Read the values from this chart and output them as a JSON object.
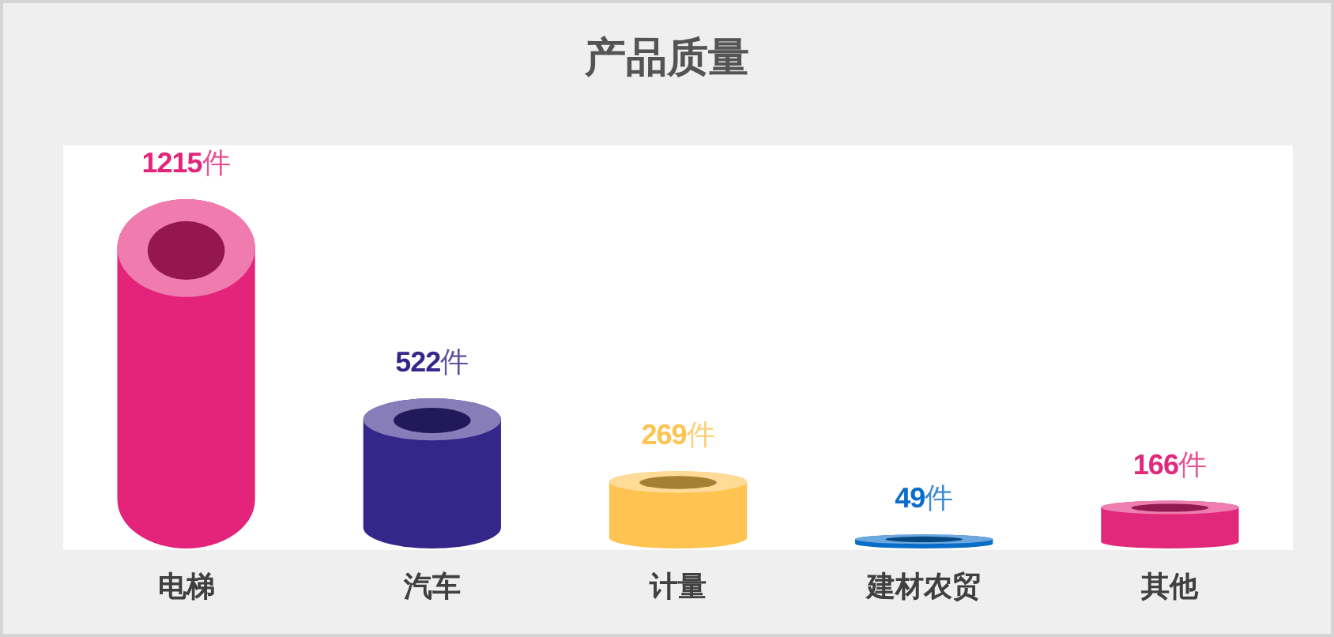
{
  "chart_data": {
    "type": "bar",
    "title": "产品质量",
    "categories": [
      "电梯",
      "汽车",
      "计量",
      "建材农贸",
      "其他"
    ],
    "values": [
      1215,
      522,
      269,
      49,
      166
    ],
    "value_labels": [
      "1215件",
      "522件",
      "269件",
      "49件",
      "166件"
    ],
    "colors": [
      "#e4237a",
      "#35278a",
      "#fec350",
      "#0a6ec8",
      "#e1287a"
    ]
  }
}
